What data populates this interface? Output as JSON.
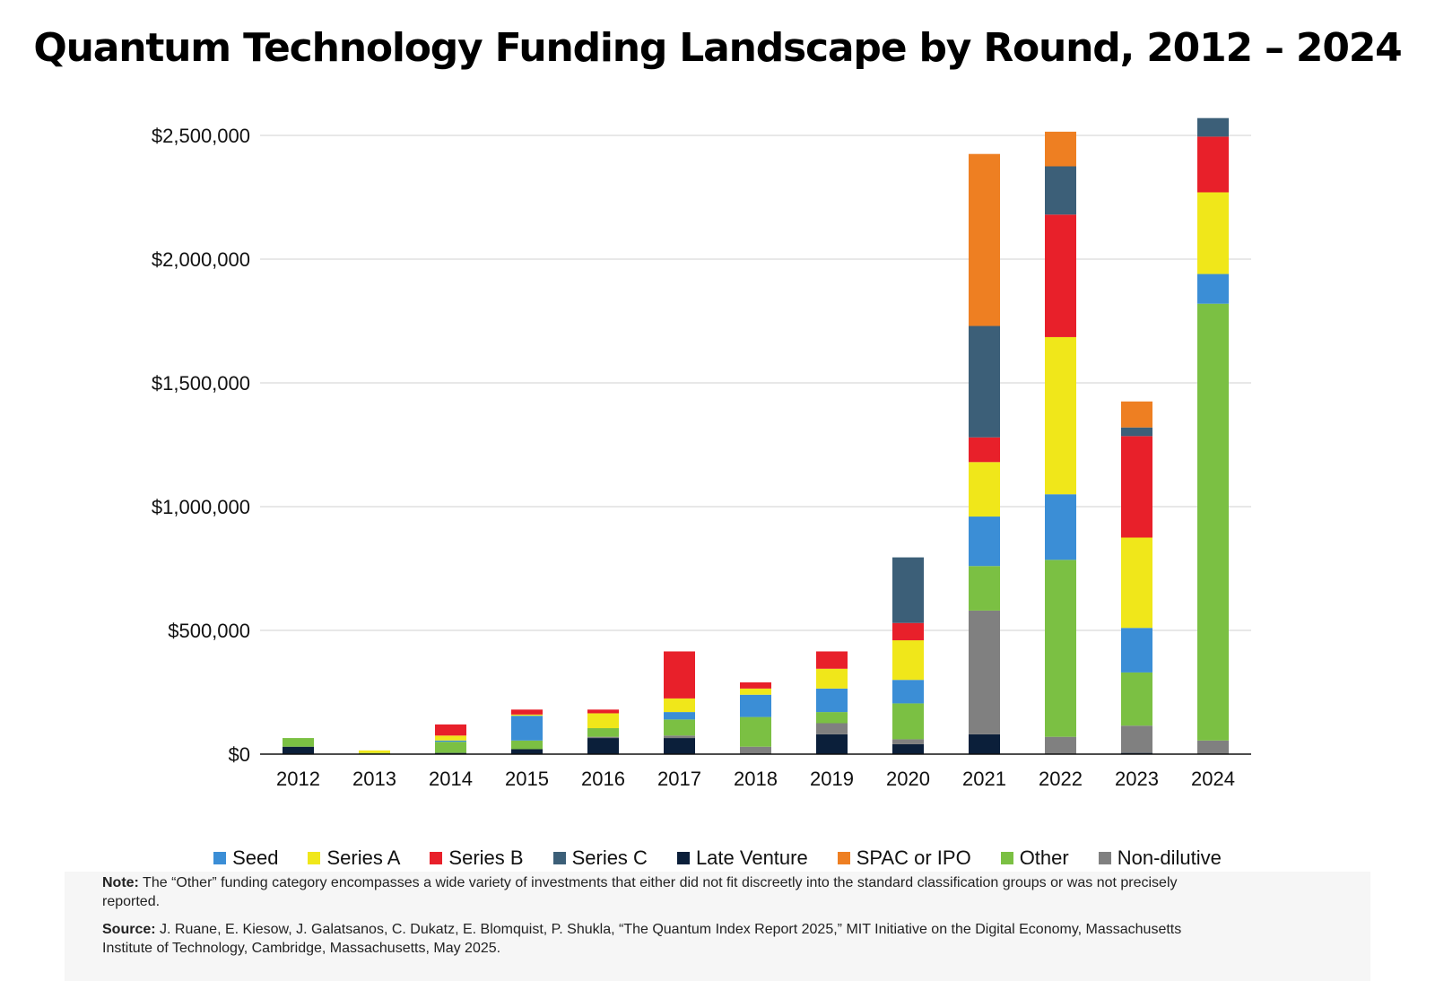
{
  "chart_data": {
    "type": "bar",
    "stacked": true,
    "title": "Quantum Technology Funding Landscape by Round, 2012 – 2024",
    "xlabel": "",
    "ylabel": "",
    "ylim": [
      0,
      2500000
    ],
    "yticks": [
      0,
      500000,
      1000000,
      1500000,
      2000000,
      2500000
    ],
    "ytick_labels": [
      "$0",
      "$500,000",
      "$1,000,000",
      "$1,500,000",
      "$2,000,000",
      "$2,500,000"
    ],
    "grid": true,
    "legend_position": "bottom",
    "categories": [
      "2012",
      "2013",
      "2014",
      "2015",
      "2016",
      "2017",
      "2018",
      "2019",
      "2020",
      "2021",
      "2022",
      "2023",
      "2024"
    ],
    "series": [
      {
        "name": "Late Venture",
        "color": "#0b1f3a",
        "values": [
          30000,
          0,
          5000,
          20000,
          65000,
          65000,
          0,
          80000,
          40000,
          80000,
          0,
          5000,
          0
        ]
      },
      {
        "name": "Non-dilutive",
        "color": "#808080",
        "values": [
          0,
          0,
          0,
          0,
          5000,
          10000,
          30000,
          45000,
          20000,
          500000,
          70000,
          110000,
          55000
        ]
      },
      {
        "name": "Other",
        "color": "#7bc043",
        "values": [
          35000,
          5000,
          45000,
          35000,
          35000,
          65000,
          120000,
          45000,
          145000,
          180000,
          715000,
          215000,
          1765000
        ]
      },
      {
        "name": "Seed",
        "color": "#3b8ed6",
        "values": [
          0,
          0,
          5000,
          100000,
          0,
          30000,
          90000,
          95000,
          95000,
          200000,
          265000,
          180000,
          120000
        ]
      },
      {
        "name": "Series A",
        "color": "#f0e71a",
        "values": [
          0,
          10000,
          20000,
          5000,
          60000,
          55000,
          25000,
          80000,
          160000,
          220000,
          635000,
          365000,
          330000
        ]
      },
      {
        "name": "Series B",
        "color": "#e8202a",
        "values": [
          0,
          0,
          45000,
          20000,
          15000,
          190000,
          25000,
          70000,
          70000,
          100000,
          495000,
          410000,
          225000
        ]
      },
      {
        "name": "Series C",
        "color": "#3c5f78",
        "values": [
          0,
          0,
          0,
          0,
          0,
          0,
          0,
          0,
          265000,
          450000,
          195000,
          35000,
          75000
        ]
      },
      {
        "name": "SPAC or IPO",
        "color": "#ee7f22",
        "values": [
          0,
          0,
          0,
          0,
          0,
          0,
          0,
          0,
          0,
          695000,
          140000,
          105000,
          0
        ]
      }
    ]
  },
  "legend": [
    {
      "label": "Seed",
      "color": "#3b8ed6"
    },
    {
      "label": "Series A",
      "color": "#f0e71a"
    },
    {
      "label": "Series B",
      "color": "#e8202a"
    },
    {
      "label": "Series C",
      "color": "#3c5f78"
    },
    {
      "label": "Late Venture",
      "color": "#0b1f3a"
    },
    {
      "label": "SPAC or IPO",
      "color": "#ee7f22"
    },
    {
      "label": "Other",
      "color": "#7bc043"
    },
    {
      "label": "Non-dilutive",
      "color": "#808080"
    }
  ],
  "note": {
    "label": "Note:",
    "text": "The “Other” funding category encompasses a wide variety of investments that either did not fit discreetly into the standard classification groups or was not precisely reported."
  },
  "source": {
    "label": "Source:",
    "text": "J. Ruane, E. Kiesow, J. Galatsanos, C. Dukatz, E. Blomquist, P. Shukla, “The Quantum Index Report 2025,” MIT Initiative on the Digital Economy, Massachusetts Institute of Technology, Cambridge, Massachusetts, May 2025."
  }
}
